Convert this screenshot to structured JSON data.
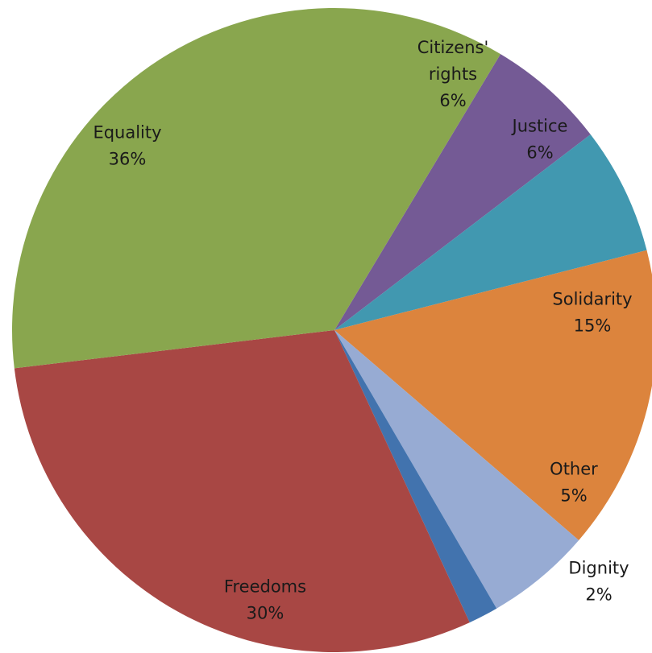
{
  "chart_data": {
    "type": "pie",
    "title": "",
    "start_angle_deg": 59,
    "direction": "clockwise",
    "slices": [
      {
        "label": "Citizens' rights",
        "label_lines": [
          "Citizens'",
          "rights"
        ],
        "pct_text": "6%",
        "value": 6,
        "color": "#745a95"
      },
      {
        "label": "Justice",
        "label_lines": [
          "Justice"
        ],
        "pct_text": "6%",
        "value": 6.4,
        "color": "#4198b0"
      },
      {
        "label": "Solidarity",
        "label_lines": [
          "Solidarity"
        ],
        "pct_text": "15%",
        "value": 15.3,
        "color": "#dc843d"
      },
      {
        "label": "Other",
        "label_lines": [
          "Other"
        ],
        "pct_text": "5%",
        "value": 5.3,
        "color": "#97abd3"
      },
      {
        "label": "Dignity",
        "label_lines": [
          "Dignity"
        ],
        "pct_text": "2%",
        "value": 1.5,
        "color": "#4273ae"
      },
      {
        "label": "Freedoms",
        "label_lines": [
          "Freedoms"
        ],
        "pct_text": "30%",
        "value": 30,
        "color": "#a84744"
      },
      {
        "label": "Equality",
        "label_lines": [
          "Equality"
        ],
        "pct_text": "36%",
        "value": 35.5,
        "color": "#89a64e"
      }
    ]
  }
}
